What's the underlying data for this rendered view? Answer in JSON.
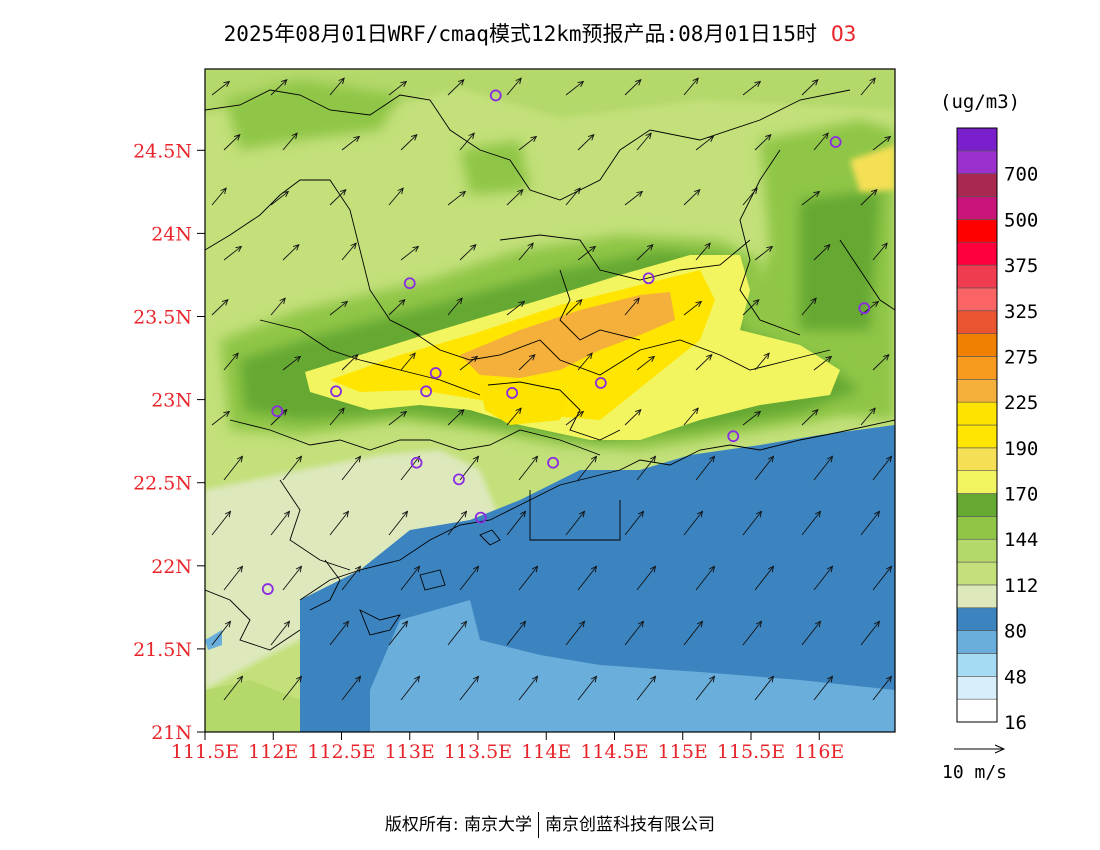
{
  "title": {
    "text": "2025年08月01日WRF/cmaq模式12km预报产品:08月01日15时",
    "pollutant": "O3"
  },
  "lat_labels": [
    "24.5N",
    "24N",
    "23.5N",
    "23N",
    "22.5N",
    "22N",
    "21.5N",
    "21N"
  ],
  "lon_labels": [
    "111.5E",
    "112E",
    "112.5E",
    "113E",
    "113.5E",
    "114E",
    "114.5E",
    "115E",
    "115.5E",
    "116E"
  ],
  "colorbar": {
    "unit": "(ug/m3)",
    "levels": [
      {
        "color": "#ffffff",
        "label": "16"
      },
      {
        "color": "#d6effa",
        "label": ""
      },
      {
        "color": "#a6dcf3",
        "label": "48"
      },
      {
        "color": "#6aaedc",
        "label": ""
      },
      {
        "color": "#3c84c0",
        "label": "80"
      },
      {
        "color": "#dde8bc",
        "label": ""
      },
      {
        "color": "#c3e07a",
        "label": "112"
      },
      {
        "color": "#b4d86a",
        "label": ""
      },
      {
        "color": "#8fc646",
        "label": "144"
      },
      {
        "color": "#65a832",
        "label": ""
      },
      {
        "color": "#f3f560",
        "label": "170"
      },
      {
        "color": "#f5df55",
        "label": ""
      },
      {
        "color": "#ffe500",
        "label": "190"
      },
      {
        "color": "#fce300",
        "label": ""
      },
      {
        "color": "#f5b03c",
        "label": "225"
      },
      {
        "color": "#f79a1e",
        "label": ""
      },
      {
        "color": "#f08000",
        "label": "275"
      },
      {
        "color": "#ea5430",
        "label": ""
      },
      {
        "color": "#fa6464",
        "label": "325"
      },
      {
        "color": "#f03c50",
        "label": ""
      },
      {
        "color": "#ff003c",
        "label": "375"
      },
      {
        "color": "#ff0000",
        "label": ""
      },
      {
        "color": "#c81478",
        "label": "500"
      },
      {
        "color": "#a82850",
        "label": ""
      },
      {
        "color": "#9b30cc",
        "label": "700"
      },
      {
        "color": "#7a1fcc",
        "label": ""
      }
    ]
  },
  "wind_reference": "10 m/s",
  "footer": {
    "left": "版权所有: 南京大学",
    "right": "南京创蓝科技有限公司"
  },
  "stations": [
    {
      "lon": 113.63,
      "lat": 24.83
    },
    {
      "lon": 116.12,
      "lat": 24.55
    },
    {
      "lon": 113.0,
      "lat": 23.7
    },
    {
      "lon": 114.75,
      "lat": 23.73
    },
    {
      "lon": 116.33,
      "lat": 23.55
    },
    {
      "lon": 113.19,
      "lat": 23.16
    },
    {
      "lon": 112.46,
      "lat": 23.05
    },
    {
      "lon": 113.12,
      "lat": 23.05
    },
    {
      "lon": 113.75,
      "lat": 23.04
    },
    {
      "lon": 114.4,
      "lat": 23.1
    },
    {
      "lon": 112.03,
      "lat": 22.93
    },
    {
      "lon": 115.37,
      "lat": 22.78
    },
    {
      "lon": 113.05,
      "lat": 22.62
    },
    {
      "lon": 114.05,
      "lat": 22.62
    },
    {
      "lon": 113.36,
      "lat": 22.52
    },
    {
      "lon": 113.52,
      "lat": 22.29
    },
    {
      "lon": 111.96,
      "lat": 21.86
    }
  ],
  "colors": {
    "axis_label": "#e8252a",
    "sea": "#3c84c0",
    "land_base": "#b4d86a"
  }
}
